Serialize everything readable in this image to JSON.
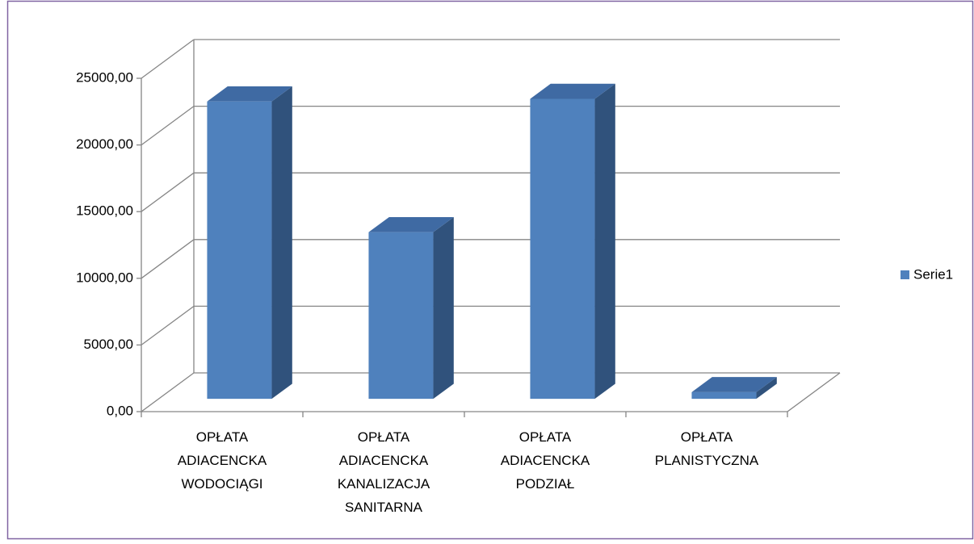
{
  "chart_data": {
    "type": "bar3d",
    "categories": [
      "OPŁATA ADIACENCKA WODOCIĄGI",
      "OPŁATA ADIACENCKA KANALIZACJA SANITARNA",
      "OPŁATA ADIACENCKA PODZIAŁ",
      "OPŁATA PLANISTYCZNA"
    ],
    "series": [
      {
        "name": "Serie1",
        "color": "#4f81bd",
        "values": [
          22300,
          12500,
          22500,
          500
        ]
      }
    ],
    "ylim": [
      0,
      25000
    ],
    "yticks": [
      {
        "value": 0,
        "label": "0,00"
      },
      {
        "value": 5000,
        "label": "5000,00"
      },
      {
        "value": 10000,
        "label": "10000,00"
      },
      {
        "value": 15000,
        "label": "15000,00"
      },
      {
        "value": 20000,
        "label": "20000,00"
      },
      {
        "value": 25000,
        "label": "25000,00"
      }
    ],
    "grid": true,
    "legend": "right"
  }
}
